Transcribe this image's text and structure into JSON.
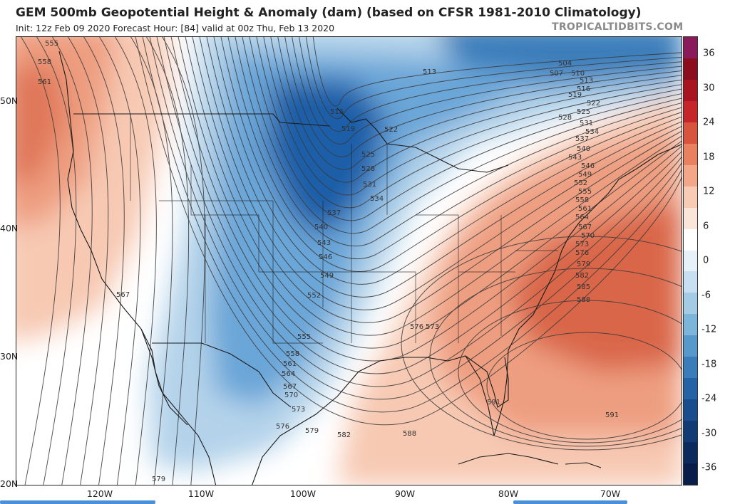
{
  "header": {
    "title": "GEM 500mb Geopotential Height & Anomaly (dam) (based on CFSR 1981-2010 Climatology)",
    "subtitle": "Init: 12z Feb 09 2020   Forecast Hour: [84]   valid at 00z Thu, Feb 13 2020",
    "brand": "TROPICALTIDBITS.COM"
  },
  "map": {
    "lat_labels": [
      "50N",
      "40N",
      "30N",
      "20N"
    ],
    "lon_labels": [
      "120W",
      "110W",
      "100W",
      "90W",
      "80W",
      "70W"
    ],
    "contour_labels": [
      "555",
      "558",
      "561",
      "567",
      "579",
      "504",
      "507",
      "510",
      "513",
      "516",
      "519",
      "522",
      "525",
      "528",
      "531",
      "534",
      "537",
      "540",
      "543",
      "546",
      "549",
      "552",
      "555",
      "558",
      "561",
      "564",
      "567",
      "570",
      "573",
      "576",
      "579",
      "582",
      "585",
      "588",
      "591",
      "591",
      "588",
      "576",
      "573",
      "579",
      "582",
      "513",
      "516",
      "519",
      "522",
      "525",
      "528",
      "531",
      "534",
      "537",
      "540",
      "543",
      "546",
      "549",
      "552",
      "555",
      "558",
      "561",
      "564",
      "567",
      "570",
      "573",
      "576"
    ],
    "anomaly_colors": {
      "strong_negative": "#1f5fa8",
      "negative": "#6aa6d8",
      "weak_negative": "#b4d3ea",
      "neutral": "#ffffff",
      "weak_positive": "#f7c9b3",
      "positive": "#ee9e80",
      "strong_positive": "#d9664a"
    }
  },
  "colorbar": {
    "ticks": [
      "36",
      "30",
      "24",
      "18",
      "12",
      "6",
      "0",
      "-6",
      "-12",
      "-18",
      "-24",
      "-30",
      "-36"
    ],
    "colors": [
      "#8b1a5c",
      "#8c0d1e",
      "#a8141f",
      "#c6262a",
      "#d9543c",
      "#e98060",
      "#f3a688",
      "#f8cbb4",
      "#fbe5d9",
      "#ffffff",
      "#e6f0f8",
      "#c7dff0",
      "#a3cbe6",
      "#7db4da",
      "#5799cb",
      "#3a7dba",
      "#2563a6",
      "#1a4d8e",
      "#123a75",
      "#0c2a5e",
      "#081d4a"
    ]
  }
}
